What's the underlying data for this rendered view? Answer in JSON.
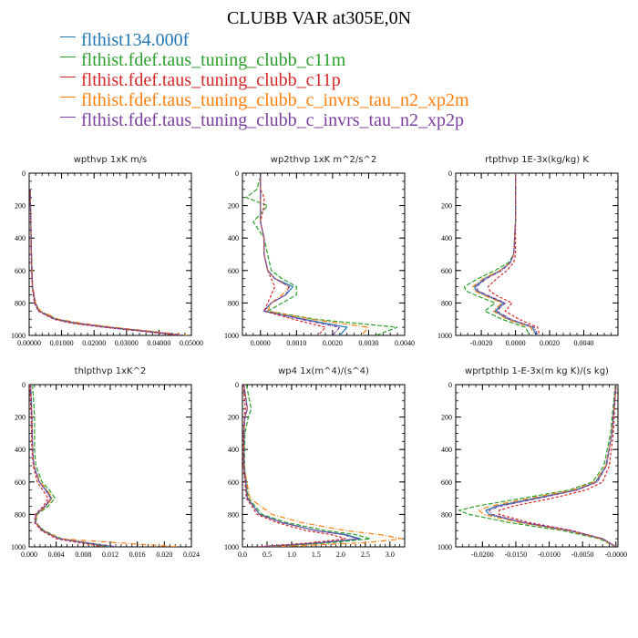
{
  "title": "CLUBB VAR at305E,0N",
  "legend": [
    {
      "name": "flthist134.000f",
      "color": "#1f77b4"
    },
    {
      "name": "flthist.fdef.taus_tuning_clubb_c11m",
      "color": "#2ca02c"
    },
    {
      "name": "flthist.fdef.taus_tuning_clubb_c11p",
      "color": "#d62728"
    },
    {
      "name": "flthist.fdef.taus_tuning_clubb_c_invrs_tau_n2_xp2m",
      "color": "#ff7f0e"
    },
    {
      "name": "flthist.fdef.taus_tuning_clubb_c_invrs_tau_n2_xp2p",
      "color": "#7b3fa0"
    }
  ],
  "chart_data": [
    {
      "type": "line",
      "title": "wpthvp   1xK m/s",
      "xlim": [
        0,
        0.05
      ],
      "ylim": [
        0,
        1000
      ],
      "y_inverted": true,
      "x_ticks": [
        0,
        0.01,
        0.02,
        0.03,
        0.04,
        0.05
      ],
      "x_tick_labels": [
        "0.00000",
        "0.01000",
        "0.02000",
        "0.03000",
        "0.04000",
        "0.05000"
      ],
      "y_ticks": [
        0,
        200,
        400,
        600,
        800,
        1000
      ],
      "y_tick_labels": [
        "0",
        "200",
        "400",
        "600",
        "800",
        "1000"
      ],
      "y": [
        100,
        300,
        500,
        700,
        800,
        850,
        900,
        925,
        950,
        975,
        1000
      ],
      "series": [
        {
          "values": [
            0.0003,
            0.0005,
            0.0007,
            0.001,
            0.0018,
            0.003,
            0.008,
            0.014,
            0.024,
            0.036,
            0.047
          ]
        },
        {
          "values": [
            0.0003,
            0.0005,
            0.0007,
            0.001,
            0.0019,
            0.0032,
            0.0085,
            0.015,
            0.025,
            0.037,
            0.048
          ]
        },
        {
          "values": [
            0.0003,
            0.0005,
            0.0006,
            0.0009,
            0.0016,
            0.0028,
            0.0075,
            0.013,
            0.023,
            0.035,
            0.046
          ]
        },
        {
          "values": [
            0.0003,
            0.0005,
            0.0007,
            0.0011,
            0.002,
            0.0035,
            0.009,
            0.016,
            0.026,
            0.038,
            0.049
          ]
        },
        {
          "values": [
            0.0003,
            0.0005,
            0.0007,
            0.001,
            0.0018,
            0.003,
            0.008,
            0.0145,
            0.0245,
            0.0365,
            0.0475
          ]
        }
      ]
    },
    {
      "type": "line",
      "title": "wp2thvp   1xK m^2/s^2",
      "xlim": [
        -0.0005,
        0.004
      ],
      "ylim": [
        0,
        1000
      ],
      "y_inverted": true,
      "x_ticks": [
        0,
        0.001,
        0.002,
        0.003,
        0.004
      ],
      "x_tick_labels": [
        "0.0000",
        "0.0010",
        "0.0020",
        "0.0030",
        "0.0040"
      ],
      "y_ticks": [
        0,
        200,
        400,
        600,
        800,
        1000
      ],
      "y_tick_labels": [
        "0",
        "200",
        "400",
        "600",
        "800",
        "1000"
      ],
      "y": [
        20,
        100,
        150,
        200,
        300,
        400,
        500,
        600,
        650,
        700,
        750,
        800,
        850,
        900,
        950,
        1000
      ],
      "series": [
        {
          "values": [
            0,
            0,
            0,
            0,
            0,
            0.0001,
            0.0001,
            0.0002,
            0.0004,
            0.0009,
            0.0007,
            0.0003,
            0.0001,
            0.0012,
            0.0024,
            0.0022
          ]
        },
        {
          "values": [
            0,
            -0.0001,
            -0.0004,
            0.0002,
            -0.0002,
            0.0001,
            0.0002,
            0.0003,
            0.0006,
            0.001,
            0.001,
            0.0006,
            0.0002,
            0.0015,
            0.0038,
            0.0032
          ]
        },
        {
          "values": [
            0,
            0,
            0.0001,
            0.0001,
            0,
            0.0001,
            0.0001,
            0.0002,
            0.0003,
            0.0004,
            0.0003,
            0.0002,
            0.0001,
            0.0009,
            0.0018,
            0.0016
          ]
        },
        {
          "values": [
            0,
            0,
            0,
            0,
            0,
            0.0001,
            0.0001,
            0.0002,
            0.0004,
            0.0008,
            0.0006,
            0.0003,
            0.0002,
            0.0014,
            0.003,
            0.0028
          ]
        },
        {
          "values": [
            0,
            0,
            0,
            0,
            0,
            0.0001,
            0.0001,
            0.0002,
            0.0004,
            0.0008,
            0.0007,
            0.0003,
            0.0001,
            0.0011,
            0.0022,
            0.002
          ]
        }
      ]
    },
    {
      "type": "line",
      "title": "rtpthvp   1E-3x(kg/kg) K",
      "xlim": [
        -0.0035,
        0.006
      ],
      "ylim": [
        0,
        1000
      ],
      "y_inverted": true,
      "x_ticks": [
        -0.002,
        0,
        0.002,
        0.004
      ],
      "x_tick_labels": [
        "-0.0020",
        "0.0000",
        "0.0020",
        "0.0040"
      ],
      "y_ticks": [
        0,
        200,
        400,
        600,
        800,
        1000
      ],
      "y_tick_labels": [
        "0",
        "200",
        "400",
        "600",
        "800",
        "1000"
      ],
      "y": [
        0,
        300,
        500,
        550,
        600,
        650,
        700,
        725,
        750,
        800,
        850,
        900,
        950,
        1000
      ],
      "series": [
        {
          "values": [
            0,
            0,
            -0.0001,
            -0.0003,
            -0.0009,
            -0.0018,
            -0.0024,
            -0.0023,
            -0.0018,
            -0.0007,
            -0.0012,
            -0.0004,
            0.001,
            0.0012
          ]
        },
        {
          "values": [
            0,
            0,
            -0.0001,
            -0.0004,
            -0.0012,
            -0.0022,
            -0.003,
            -0.0029,
            -0.0024,
            -0.0012,
            -0.0018,
            -0.0008,
            0.0006,
            0.0008
          ]
        },
        {
          "values": [
            0,
            0,
            0,
            -0.0001,
            -0.0005,
            -0.0011,
            -0.0016,
            -0.0015,
            -0.0012,
            -0.0002,
            -0.0006,
            0.0002,
            0.0013,
            0.0014
          ]
        },
        {
          "values": [
            0,
            0,
            -0.0001,
            -0.0003,
            -0.0009,
            -0.0019,
            -0.0025,
            -0.0024,
            -0.0019,
            -0.0008,
            -0.0013,
            -0.0005,
            0.0009,
            0.0011
          ]
        },
        {
          "values": [
            0,
            0,
            -0.0001,
            -0.0003,
            -0.0008,
            -0.0017,
            -0.0023,
            -0.0022,
            -0.0017,
            -0.0006,
            -0.0011,
            -0.0003,
            0.0011,
            0.0013
          ]
        }
      ]
    },
    {
      "type": "line",
      "title": "thlpthvp   1xK^2",
      "xlim": [
        0,
        0.024
      ],
      "ylim": [
        0,
        1000
      ],
      "y_inverted": true,
      "x_ticks": [
        0,
        0.004,
        0.008,
        0.012,
        0.016,
        0.02,
        0.024
      ],
      "x_tick_labels": [
        "0.000",
        "0.004",
        "0.008",
        "0.012",
        "0.016",
        "0.020",
        "0.024"
      ],
      "y_ticks": [
        0,
        200,
        400,
        600,
        800,
        1000
      ],
      "y_tick_labels": [
        "0",
        "200",
        "400",
        "600",
        "800",
        "1000"
      ],
      "y": [
        0,
        200,
        400,
        500,
        600,
        650,
        700,
        750,
        800,
        850,
        900,
        950,
        1000
      ],
      "series": [
        {
          "values": [
            0.0002,
            0.0004,
            0.0005,
            0.0007,
            0.0015,
            0.0025,
            0.0033,
            0.0024,
            0.001,
            0.0009,
            0.002,
            0.0045,
            0.012
          ]
        },
        {
          "values": [
            0.0005,
            0.0008,
            0.0008,
            0.001,
            0.0019,
            0.003,
            0.0038,
            0.0028,
            0.0012,
            0.001,
            0.0022,
            0.0048,
            0.012
          ]
        },
        {
          "values": [
            0.0001,
            0.0003,
            0.0004,
            0.0006,
            0.0012,
            0.002,
            0.0028,
            0.0021,
            0.0009,
            0.0008,
            0.0018,
            0.004,
            0.011
          ]
        },
        {
          "values": [
            0.0002,
            0.0004,
            0.0005,
            0.0007,
            0.0016,
            0.0027,
            0.0034,
            0.0025,
            0.0011,
            0.0009,
            0.0021,
            0.0046,
            0.022
          ]
        },
        {
          "values": [
            0.0002,
            0.0004,
            0.0005,
            0.0007,
            0.0015,
            0.0024,
            0.0032,
            0.0023,
            0.001,
            0.0009,
            0.002,
            0.0044,
            0.013
          ]
        }
      ]
    },
    {
      "type": "line",
      "title": "wp4   1x(m^4)/(s^4)",
      "xlim": [
        0,
        3.3
      ],
      "ylim": [
        0,
        1000
      ],
      "y_inverted": true,
      "x_ticks": [
        0,
        0.5,
        1,
        1.5,
        2,
        2.5,
        3
      ],
      "x_tick_labels": [
        "0.0",
        "0.5",
        "1.0",
        "1.5",
        "2.0",
        "2.5",
        "3.0"
      ],
      "y_ticks": [
        0,
        200,
        400,
        600,
        800,
        1000
      ],
      "y_tick_labels": [
        "0",
        "200",
        "400",
        "600",
        "800",
        "1000"
      ],
      "y": [
        0,
        150,
        200,
        300,
        500,
        700,
        800,
        850,
        900,
        925,
        950,
        975,
        1000
      ],
      "series": [
        {
          "values": [
            0.03,
            0.1,
            0.05,
            0.03,
            0.03,
            0.1,
            0.35,
            0.8,
            1.5,
            2.1,
            2.4,
            1.6,
            0.4
          ]
        },
        {
          "values": [
            0.08,
            0.18,
            0.12,
            0.05,
            0.04,
            0.12,
            0.4,
            0.9,
            1.7,
            2.3,
            2.6,
            1.8,
            0.5
          ]
        },
        {
          "values": [
            0.02,
            0.06,
            0.04,
            0.02,
            0.02,
            0.08,
            0.3,
            0.7,
            1.3,
            1.8,
            2.1,
            1.4,
            0.3
          ]
        },
        {
          "values": [
            0.03,
            0.1,
            0.05,
            0.03,
            0.03,
            0.15,
            0.6,
            1.2,
            2.1,
            2.8,
            3.25,
            2.5,
            0.6
          ]
        },
        {
          "values": [
            0.03,
            0.1,
            0.05,
            0.03,
            0.03,
            0.1,
            0.35,
            0.8,
            1.5,
            2.05,
            2.35,
            1.6,
            0.4
          ]
        }
      ]
    },
    {
      "type": "line",
      "title": "wprtpthlp   1-E-3x(m kg K)/(s kg)",
      "xlim": [
        -0.024,
        0.0003
      ],
      "ylim": [
        0,
        1000
      ],
      "y_inverted": true,
      "x_ticks": [
        -0.02,
        -0.015,
        -0.01,
        -0.005,
        0
      ],
      "x_tick_labels": [
        "-0.0200",
        "-0.0150",
        "-0.0100",
        "-0.0050",
        "-0.0000"
      ],
      "y_ticks": [
        0,
        200,
        400,
        600,
        800,
        1000
      ],
      "y_tick_labels": [
        "0",
        "200",
        "400",
        "600",
        "800",
        "1000"
      ],
      "y": [
        0,
        300,
        500,
        600,
        650,
        700,
        750,
        775,
        800,
        850,
        900,
        950,
        1000
      ],
      "series": [
        {
          "values": [
            0,
            -0.0006,
            -0.0015,
            -0.003,
            -0.006,
            -0.012,
            -0.018,
            -0.0195,
            -0.019,
            -0.014,
            -0.007,
            -0.002,
            0
          ]
        },
        {
          "values": [
            -0.0001,
            -0.0008,
            -0.0018,
            -0.0035,
            -0.007,
            -0.014,
            -0.021,
            -0.0235,
            -0.022,
            -0.016,
            -0.008,
            -0.0025,
            0
          ]
        },
        {
          "values": [
            0,
            -0.0004,
            -0.001,
            -0.002,
            -0.0045,
            -0.0095,
            -0.0155,
            -0.0175,
            -0.0175,
            -0.013,
            -0.0065,
            -0.002,
            0
          ]
        },
        {
          "values": [
            0,
            -0.0006,
            -0.0015,
            -0.0032,
            -0.0065,
            -0.0128,
            -0.019,
            -0.0205,
            -0.0198,
            -0.0145,
            -0.0072,
            -0.0022,
            0
          ]
        },
        {
          "values": [
            0,
            -0.0006,
            -0.0014,
            -0.0028,
            -0.0058,
            -0.0115,
            -0.0175,
            -0.019,
            -0.0186,
            -0.0138,
            -0.0068,
            -0.002,
            0
          ]
        }
      ]
    }
  ]
}
